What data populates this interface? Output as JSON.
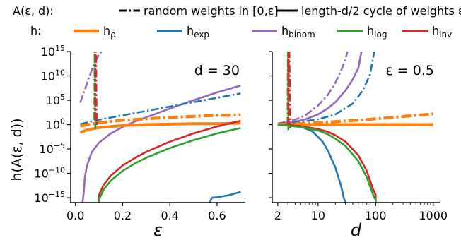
{
  "legend": {
    "row1_label": "A(ε, d):",
    "row2_label": "h:",
    "styles": [
      {
        "id": "dashdot",
        "label": "random weights in [0,ε]"
      },
      {
        "id": "solid",
        "label": "length-d/2 cycle of weights ε"
      }
    ],
    "functions": [
      {
        "id": "rho",
        "base": "h",
        "sub": "ρ",
        "color": "#ff7f0e"
      },
      {
        "id": "exp",
        "base": "h",
        "sub": "exp",
        "color": "#1f77b4"
      },
      {
        "id": "binom",
        "base": "h",
        "sub": "binom",
        "color": "#9467bd"
      },
      {
        "id": "log",
        "base": "h",
        "sub": "log",
        "color": "#2ca02c"
      },
      {
        "id": "inv",
        "base": "h",
        "sub": "inv",
        "color": "#d62728"
      }
    ]
  },
  "y_axis": {
    "label": "h(A(ε, d))",
    "scale": "log",
    "ylim_exp": [
      -16,
      15
    ],
    "tick_exponents": [
      15,
      10,
      5,
      0,
      -5,
      -10,
      -15
    ]
  },
  "chart_data": [
    {
      "type": "line",
      "panel": "left",
      "annotation": "d = 30",
      "xlabel": "ε",
      "xscale": "linear",
      "xlim": [
        -0.02,
        0.72
      ],
      "xticks": [
        0.0,
        0.2,
        0.4,
        0.6
      ],
      "xtick_labels": [
        "0.0",
        "0.2",
        "0.4",
        "0.6"
      ],
      "y_unit": "log10",
      "series": [
        {
          "func": "binom",
          "style": "dashdot",
          "x": [
            0.02,
            0.04,
            0.06,
            0.08,
            0.1,
            0.12,
            0.14
          ],
          "y": [
            4.5,
            7.2,
            10,
            12.5,
            14.4,
            15.5,
            16.5
          ]
        },
        {
          "func": "binom",
          "style": "solid",
          "x": [
            0.03,
            0.035,
            0.04,
            0.05,
            0.07,
            0.1,
            0.15,
            0.2,
            0.25,
            0.3,
            0.4,
            0.5,
            0.6,
            0.7
          ],
          "y": [
            -16,
            -14,
            -10.8,
            -8.2,
            -5.6,
            -3.7,
            -1.8,
            -0.5,
            0.6,
            1.5,
            3.3,
            5.0,
            6.6,
            8.0
          ]
        },
        {
          "func": "exp",
          "style": "dashdot",
          "x": [
            0.02,
            0.1,
            0.2,
            0.3,
            0.4,
            0.5,
            0.6,
            0.7
          ],
          "y": [
            0.1,
            1.0,
            1.9,
            2.8,
            3.7,
            4.6,
            5.5,
            6.4
          ]
        },
        {
          "func": "exp",
          "style": "solid",
          "x": [
            0.57,
            0.575,
            0.58,
            0.6,
            0.65,
            0.7
          ],
          "y": [
            -16,
            -15.3,
            -15.0,
            -14.9,
            -14.5,
            -13.8
          ]
        },
        {
          "func": "rho",
          "style": "dashdot",
          "x": [
            0.02,
            0.1,
            0.2,
            0.3,
            0.4,
            0.5,
            0.6,
            0.7
          ],
          "y": [
            -0.3,
            0.4,
            0.9,
            1.2,
            1.5,
            1.7,
            1.9,
            2.0
          ]
        },
        {
          "func": "rho",
          "style": "solid",
          "x": [
            0.02,
            0.05,
            0.1,
            0.2,
            0.3,
            0.4,
            0.5,
            0.6,
            0.7
          ],
          "y": [
            -1.6,
            -1.1,
            -0.6,
            -0.2,
            0.0,
            0.1,
            0.2,
            0.2,
            0.3
          ]
        },
        {
          "func": "log",
          "style": "dashdot",
          "x": [
            0.08,
            0.082,
            0.084,
            0.086,
            0.09
          ],
          "y": [
            1.0,
            16.5,
            -0.8,
            0.7,
            0.8
          ]
        },
        {
          "func": "inv",
          "style": "dashdot",
          "x": [
            0.083,
            0.085,
            0.087,
            0.09,
            0.093
          ],
          "y": [
            1.0,
            16.5,
            16.5,
            -0.3,
            0.6
          ]
        },
        {
          "func": "inv",
          "style": "solid",
          "x": [
            0.1,
            0.1,
            0.12,
            0.15,
            0.2,
            0.25,
            0.3,
            0.4,
            0.5,
            0.6,
            0.7
          ],
          "y": [
            -16,
            -14.4,
            -12.3,
            -10.5,
            -8.4,
            -6.9,
            -5.6,
            -3.5,
            -1.8,
            -0.4,
            0.8
          ]
        },
        {
          "func": "log",
          "style": "solid",
          "x": [
            0.1,
            0.1,
            0.12,
            0.15,
            0.2,
            0.25,
            0.3,
            0.4,
            0.5,
            0.6,
            0.7
          ],
          "y": [
            -16,
            -15.3,
            -13.3,
            -11.5,
            -9.5,
            -8.0,
            -6.8,
            -4.8,
            -3.2,
            -1.8,
            -0.7
          ]
        }
      ]
    },
    {
      "type": "line",
      "panel": "right",
      "annotation": "ε = 0.5",
      "xlabel": "d",
      "xscale": "log",
      "xlim": [
        1.6,
        1300
      ],
      "xticks": [
        2,
        10,
        100,
        1000
      ],
      "xtick_labels": [
        "2",
        "10",
        "100",
        "1000"
      ],
      "y_unit": "log10",
      "series": [
        {
          "func": "binom",
          "style": "dashdot",
          "x": [
            2,
            4,
            6,
            10,
            15,
            20,
            25,
            30,
            35
          ],
          "y": [
            0.2,
            1.0,
            1.9,
            3.9,
            6.2,
            8.6,
            11.0,
            13.4,
            16.5
          ]
        },
        {
          "func": "binom",
          "style": "solid",
          "x": [
            2,
            4,
            6,
            10,
            15,
            20,
            30,
            40,
            50,
            60
          ],
          "y": [
            0.1,
            0.6,
            1.1,
            2.1,
            3.4,
            4.6,
            7.0,
            9.3,
            11.6,
            16.5
          ]
        },
        {
          "func": "exp",
          "style": "dashdot",
          "x": [
            2,
            5,
            10,
            20,
            40,
            60,
            80,
            100
          ],
          "y": [
            0.2,
            0.6,
            1.1,
            2.1,
            4.3,
            7.0,
            10.3,
            16.5
          ]
        },
        {
          "func": "exp",
          "style": "solid",
          "x": [
            2,
            5,
            8,
            12,
            15,
            20,
            25,
            28,
            30
          ],
          "y": [
            0.0,
            -0.4,
            -1.4,
            -3.5,
            -5.5,
            -8.8,
            -12.5,
            -15.0,
            -16.0
          ]
        },
        {
          "func": "rho",
          "style": "dashdot",
          "x": [
            2,
            10,
            50,
            100,
            200,
            500,
            1000
          ],
          "y": [
            0.0,
            0.4,
            0.9,
            1.2,
            1.5,
            1.9,
            2.2
          ]
        },
        {
          "func": "rho",
          "style": "solid",
          "x": [
            2,
            10,
            100,
            1000
          ],
          "y": [
            0.0,
            0.0,
            0.0,
            0.0
          ]
        },
        {
          "func": "log",
          "style": "dashdot",
          "x": [
            2.95,
            3.0,
            3.05,
            3.1,
            3.2
          ],
          "y": [
            0.0,
            16.5,
            -1.0,
            0.3,
            0.1
          ]
        },
        {
          "func": "inv",
          "style": "dashdot",
          "x": [
            3.05,
            3.1,
            3.15,
            3.3,
            3.5
          ],
          "y": [
            0.0,
            16.5,
            16.5,
            -0.5,
            0.0
          ]
        },
        {
          "func": "inv",
          "style": "solid",
          "x": [
            2,
            5,
            10,
            15,
            20,
            30,
            50,
            70,
            90,
            100,
            100
          ],
          "y": [
            0.0,
            -0.3,
            -0.9,
            -1.5,
            -2.2,
            -3.5,
            -6.3,
            -9.5,
            -13.2,
            -14.4,
            -16.0
          ]
        },
        {
          "func": "log",
          "style": "solid",
          "x": [
            2,
            5,
            10,
            15,
            20,
            30,
            50,
            70,
            90,
            100,
            100
          ],
          "y": [
            0.0,
            -0.5,
            -1.2,
            -2.0,
            -2.9,
            -4.4,
            -7.5,
            -10.8,
            -14.3,
            -15.5,
            -16.0
          ]
        }
      ]
    }
  ]
}
